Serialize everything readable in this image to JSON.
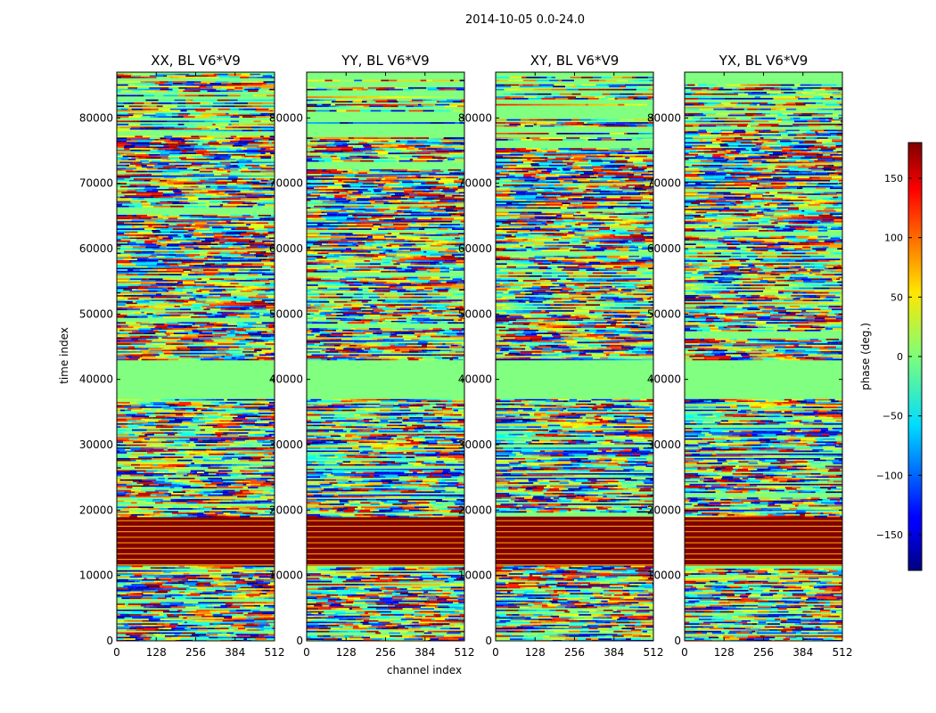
{
  "chart_data": {
    "type": "heatmap",
    "suptitle": "2014-10-05 0.0-24.0",
    "xlabel": "channel index",
    "ylabel": "time index",
    "x_range": [
      0,
      512
    ],
    "x_ticks": [
      0,
      128,
      256,
      384,
      512
    ],
    "y_range": [
      0,
      87000
    ],
    "y_ticks": [
      0,
      10000,
      20000,
      30000,
      40000,
      50000,
      60000,
      70000,
      80000
    ],
    "panels": [
      {
        "title": "XX, BL V6*V9"
      },
      {
        "title": "YY, BL V6*V9"
      },
      {
        "title": "XY, BL V6*V9"
      },
      {
        "title": "YX, BL V6*V9"
      }
    ],
    "colorbar": {
      "label": "phase (deg.)",
      "range": [
        -180,
        180
      ],
      "ticks": [
        -150,
        -100,
        -50,
        0,
        50,
        100,
        150
      ],
      "colormap": "jet"
    },
    "bands": [
      {
        "y_from": 0,
        "y_to": 11500,
        "kind": "noisy"
      },
      {
        "y_from": 11500,
        "y_to": 19000,
        "kind": "striped_max"
      },
      {
        "y_from": 19000,
        "y_to": 37000,
        "kind": "noisy"
      },
      {
        "y_from": 37000,
        "y_to": 43000,
        "kind": "flat_zero"
      },
      {
        "y_from": 43000,
        "y_to": 45000,
        "kind": "noisy"
      },
      {
        "y_from": 45000,
        "y_to": 49000,
        "kind": "noisy"
      },
      {
        "y_from": 49000,
        "y_to": 77000,
        "kind": "noisy"
      },
      {
        "y_from": 77000,
        "y_to": 87000,
        "kind": "sparse"
      }
    ]
  }
}
